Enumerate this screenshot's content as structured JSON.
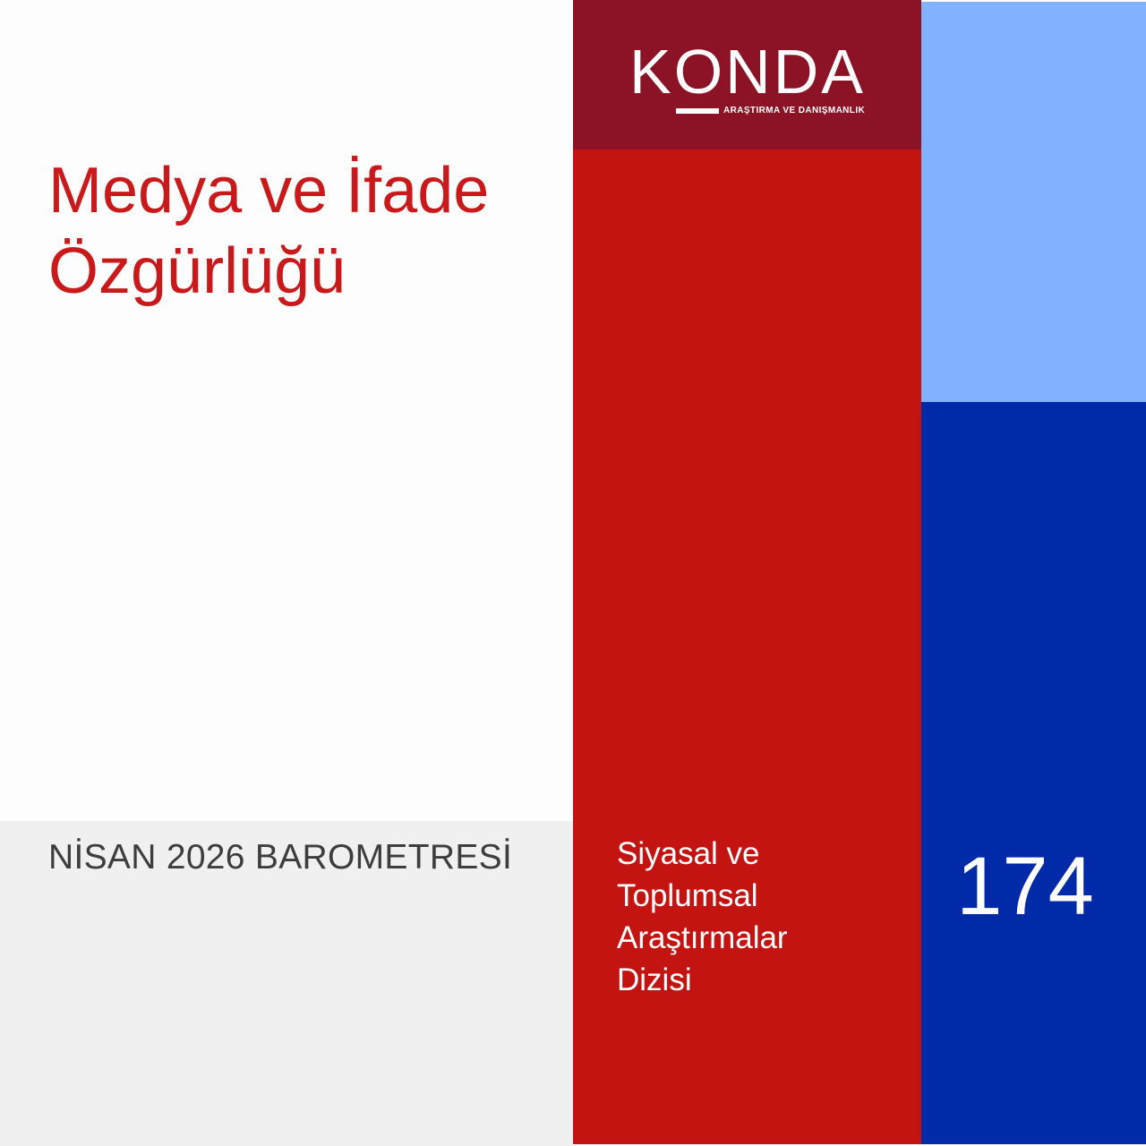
{
  "title": {
    "line1": "Medya ve İfade",
    "line2": "Özgürlüğü"
  },
  "barometer": "NİSAN 2026 BAROMETRESİ",
  "logo": {
    "wordmark": "KONDA",
    "tagline": "ARAŞTIRMA VE DANIŞMANLIK"
  },
  "series": {
    "line1": "Siyasal ve",
    "line2": "Toplumsal",
    "line3": "Araştırmalar",
    "line4": "Dizisi"
  },
  "issue_number": "174",
  "colors": {
    "title_red": "#c9191a",
    "logo_maroon": "#8b1325",
    "series_red": "#c41411",
    "light_blue": "#82b2ff",
    "dark_blue": "#002aa8",
    "footer_gray": "#f0f0f0"
  }
}
